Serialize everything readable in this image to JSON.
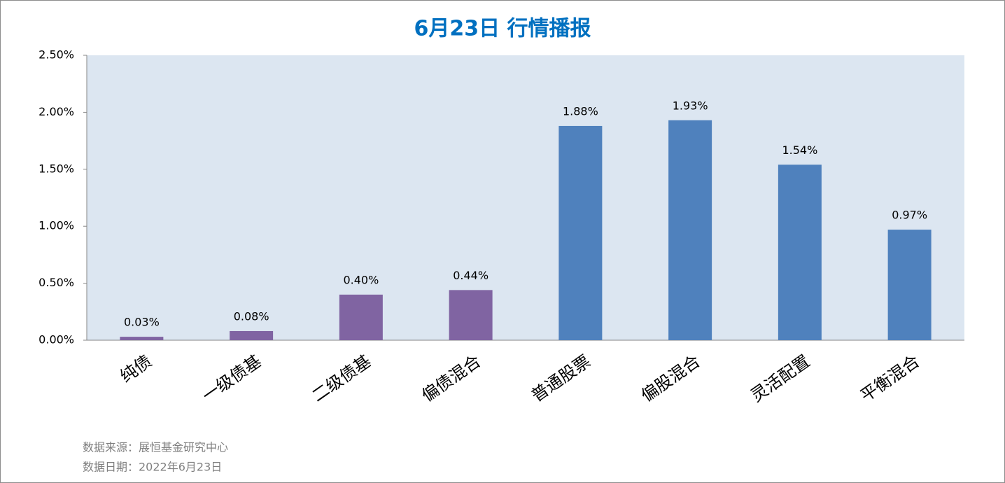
{
  "chart_data": {
    "type": "bar",
    "title": "6月23日  行情播报",
    "categories": [
      "纯债",
      "一级债基",
      "二级债基",
      "偏债混合",
      "普通股票",
      "偏股混合",
      "灵活配置",
      "平衡混合"
    ],
    "values": [
      0.03,
      0.08,
      0.4,
      0.44,
      1.88,
      1.93,
      1.54,
      0.97
    ],
    "value_labels": [
      "0.03%",
      "0.08%",
      "0.40%",
      "0.44%",
      "1.88%",
      "1.93%",
      "1.54%",
      "0.97%"
    ],
    "colors": [
      "#8064a2",
      "#8064a2",
      "#8064a2",
      "#8064a2",
      "#4f81bd",
      "#4f81bd",
      "#4f81bd",
      "#4f81bd"
    ],
    "ylim": [
      0,
      2.5
    ],
    "yticks": [
      {
        "value": 0,
        "label": "0.00%"
      },
      {
        "value": 0.5,
        "label": "0.50%"
      },
      {
        "value": 1,
        "label": "1.00%"
      },
      {
        "value": 1.5,
        "label": "1.50%"
      },
      {
        "value": 2,
        "label": "2.00%"
      },
      {
        "value": 2.5,
        "label": "2.50%"
      }
    ],
    "grid": false,
    "notes": [
      "数据来源：展恒基金研究中心",
      "数据日期：2022年6月23日"
    ]
  }
}
